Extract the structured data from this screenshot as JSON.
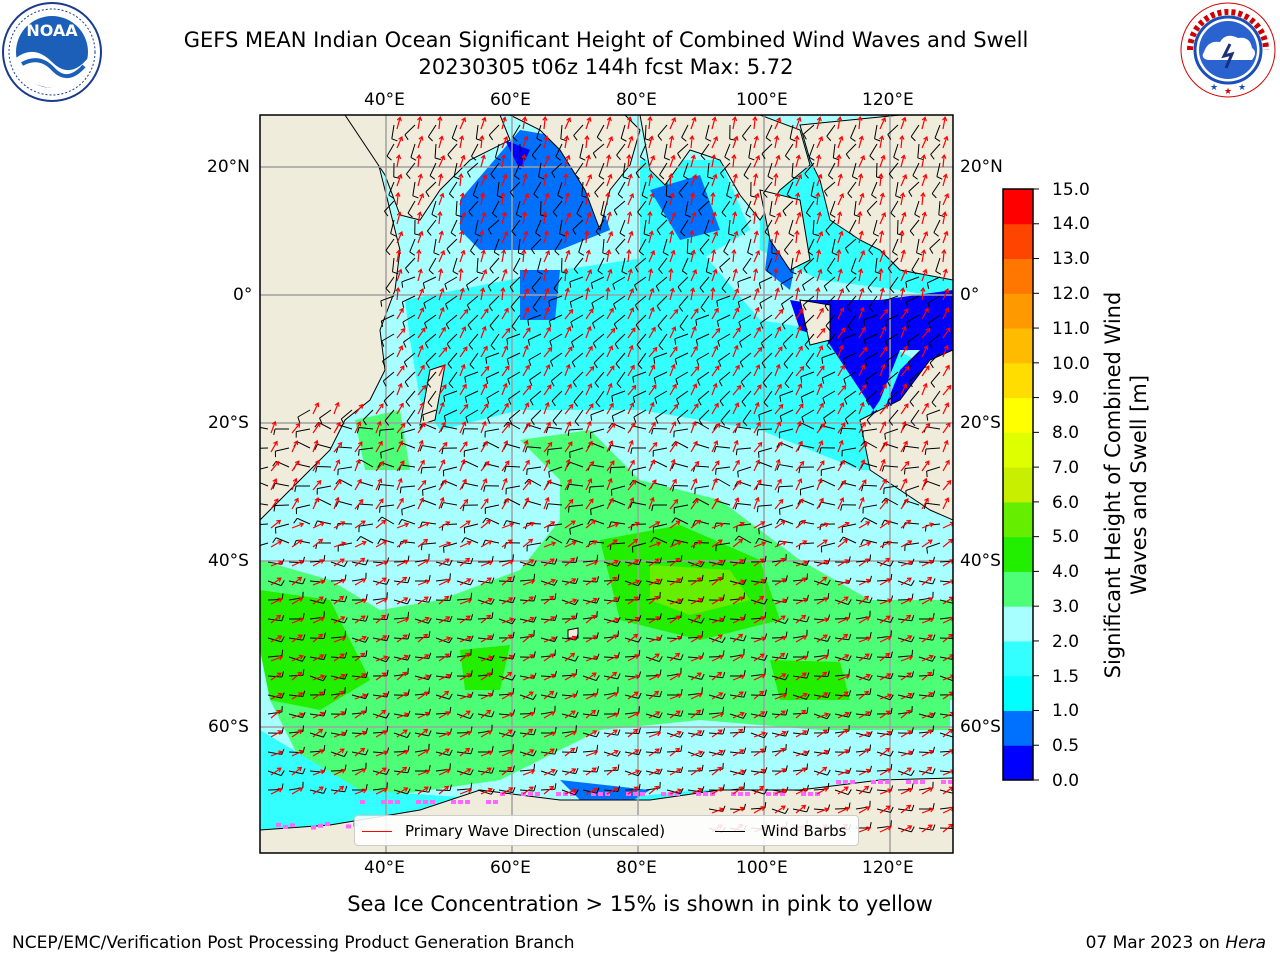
{
  "header": {
    "title_line1": "GEFS MEAN Indian Ocean Significant Height of Combined Wind Waves and Swell",
    "title_line2": "20230305 t06z 144h fcst   Max: 5.72"
  },
  "logos": {
    "noaa_text": "NOAA",
    "noaa_ring_text": "NATIONAL OCEANIC AND ATMOSPHERIC ADMINISTRATION · U.S. DEPARTMENT OF COMMERCE",
    "nws_ring_text": "NATIONAL WEATHER SERVICE"
  },
  "map": {
    "lon_range": [
      20,
      130
    ],
    "lat_range": [
      -78,
      27
    ],
    "top_lon_labels": [
      "40°E",
      "60°E",
      "80°E",
      "100°E",
      "120°E"
    ],
    "bottom_lon_labels": [
      "40°E",
      "60°E",
      "80°E",
      "100°E",
      "120°E"
    ],
    "left_lat_labels": [
      "20°N",
      "0°",
      "20°S",
      "40°S",
      "60°S"
    ],
    "right_lat_labels": [
      "20°N",
      "0°",
      "20°S",
      "40°S",
      "60°S"
    ],
    "grid": true,
    "colors": {
      "land": "#efecdc",
      "wave_0_0.5": "#0000ff",
      "wave_0.5_1.0": "#0070ff",
      "wave_1.5_2.0": "#33ffff",
      "wave_2.0_3.0": "#a8ffff",
      "wave_3.0_4.0": "#4dff77",
      "wave_4.0_5.0": "#22ee00",
      "wave_5.0_6.0": "#66ee00",
      "wave_direction": "#ff0000",
      "wind_barb": "#000000",
      "sea_ice": "#ff66ff"
    }
  },
  "colorbar": {
    "title": "Significant Height of Combined Wind Waves and Swell [m]",
    "tick_labels": [
      "0.0",
      "0.5",
      "1.0",
      "1.5",
      "2.0",
      "3.0",
      "4.0",
      "5.0",
      "6.0",
      "7.0",
      "8.0",
      "9.0",
      "10.0",
      "11.0",
      "12.0",
      "13.0",
      "14.0",
      "15.0"
    ],
    "colors": [
      "#0000ff",
      "#0070ff",
      "#00ffff",
      "#33ffff",
      "#a8ffff",
      "#4dff77",
      "#22ee00",
      "#66ee00",
      "#c8ee00",
      "#ddff00",
      "#ffff00",
      "#ffdd00",
      "#ffbb00",
      "#ff9900",
      "#ff7700",
      "#ff4400",
      "#ff0000"
    ]
  },
  "legend": {
    "wave_direction_label": "Primary Wave Direction (unscaled)",
    "wind_barbs_label": "Wind Barbs",
    "wave_color": "#ff0000",
    "barb_color": "#000000"
  },
  "footer": {
    "ice_note": "Sea Ice Concentration > 15% is shown in pink to yellow",
    "left": "NCEP/EMC/Verification Post Processing Product Generation Branch",
    "right_date": "07 Mar 2023 on ",
    "right_host": "Hera"
  }
}
